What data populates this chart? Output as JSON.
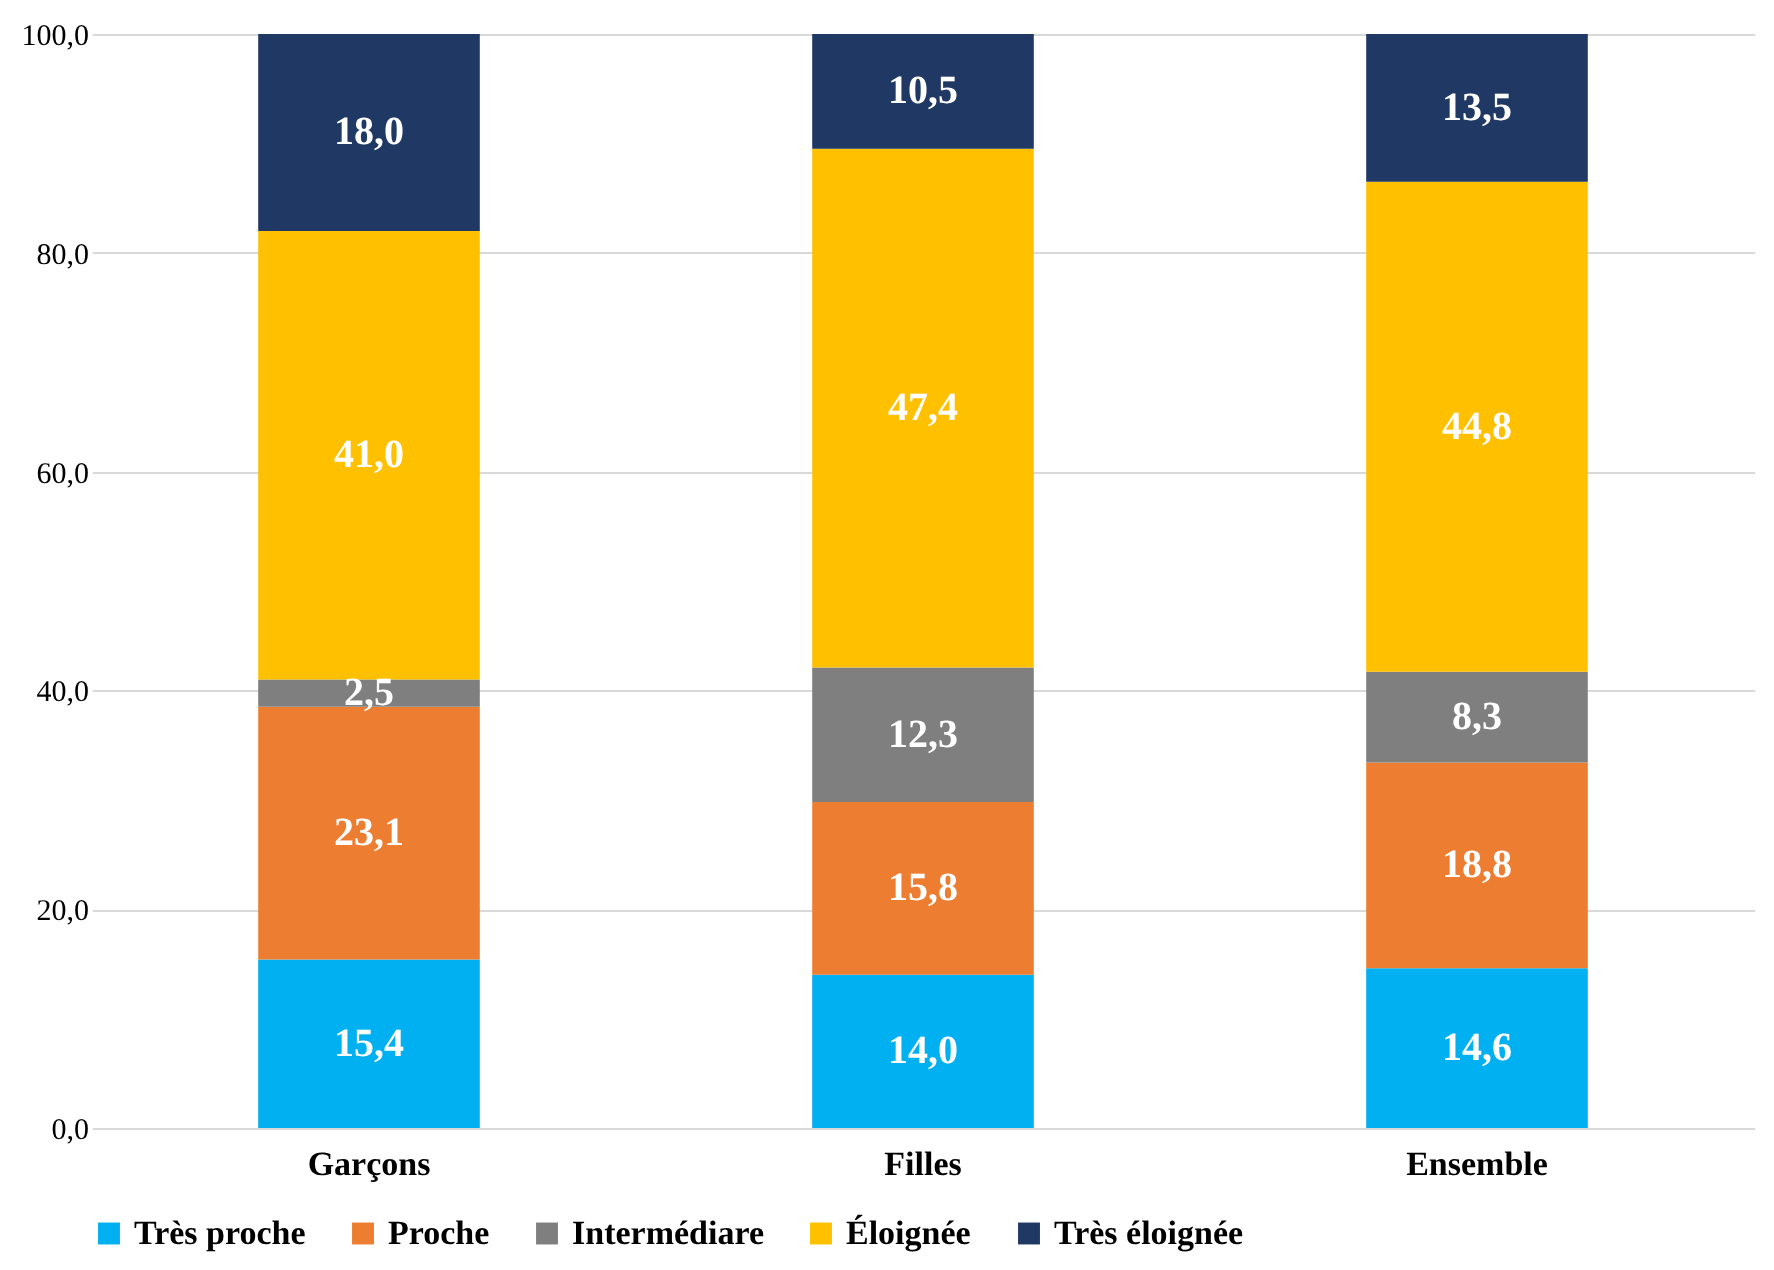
{
  "chart_data": {
    "type": "bar",
    "stacked": true,
    "categories": [
      "Garçons",
      "Filles",
      "Ensemble"
    ],
    "series": [
      {
        "name": "Très proche",
        "color": "#00b0f0",
        "values": [
          15.4,
          14.0,
          14.6
        ],
        "value_labels": [
          "15,4",
          "14,0",
          "14,6"
        ]
      },
      {
        "name": "Proche",
        "color": "#ed7d31",
        "values": [
          23.1,
          15.8,
          18.8
        ],
        "value_labels": [
          "23,1",
          "15,8",
          "18,8"
        ]
      },
      {
        "name": "Intermédiare",
        "color": "#7f7f7f",
        "values": [
          2.5,
          12.3,
          8.3
        ],
        "value_labels": [
          "2,5",
          "12,3",
          "8,3"
        ]
      },
      {
        "name": "Éloignée",
        "color": "#ffc000",
        "values": [
          41.0,
          47.4,
          44.8
        ],
        "value_labels": [
          "41,0",
          "47,4",
          "44,8"
        ]
      },
      {
        "name": "Très éloignée",
        "color": "#203864",
        "values": [
          18.0,
          10.5,
          13.5
        ],
        "value_labels": [
          "18,0",
          "10,5",
          "13,5"
        ]
      }
    ],
    "ylim": [
      0,
      100
    ],
    "yticks": [
      {
        "value": 0,
        "label": "0,0"
      },
      {
        "value": 20,
        "label": "20,0"
      },
      {
        "value": 40,
        "label": "40,0"
      },
      {
        "value": 60,
        "label": "60,0"
      },
      {
        "value": 80,
        "label": "80,0"
      },
      {
        "value": 100,
        "label": "100,0"
      }
    ],
    "grid": "y",
    "legend": "bottom"
  }
}
